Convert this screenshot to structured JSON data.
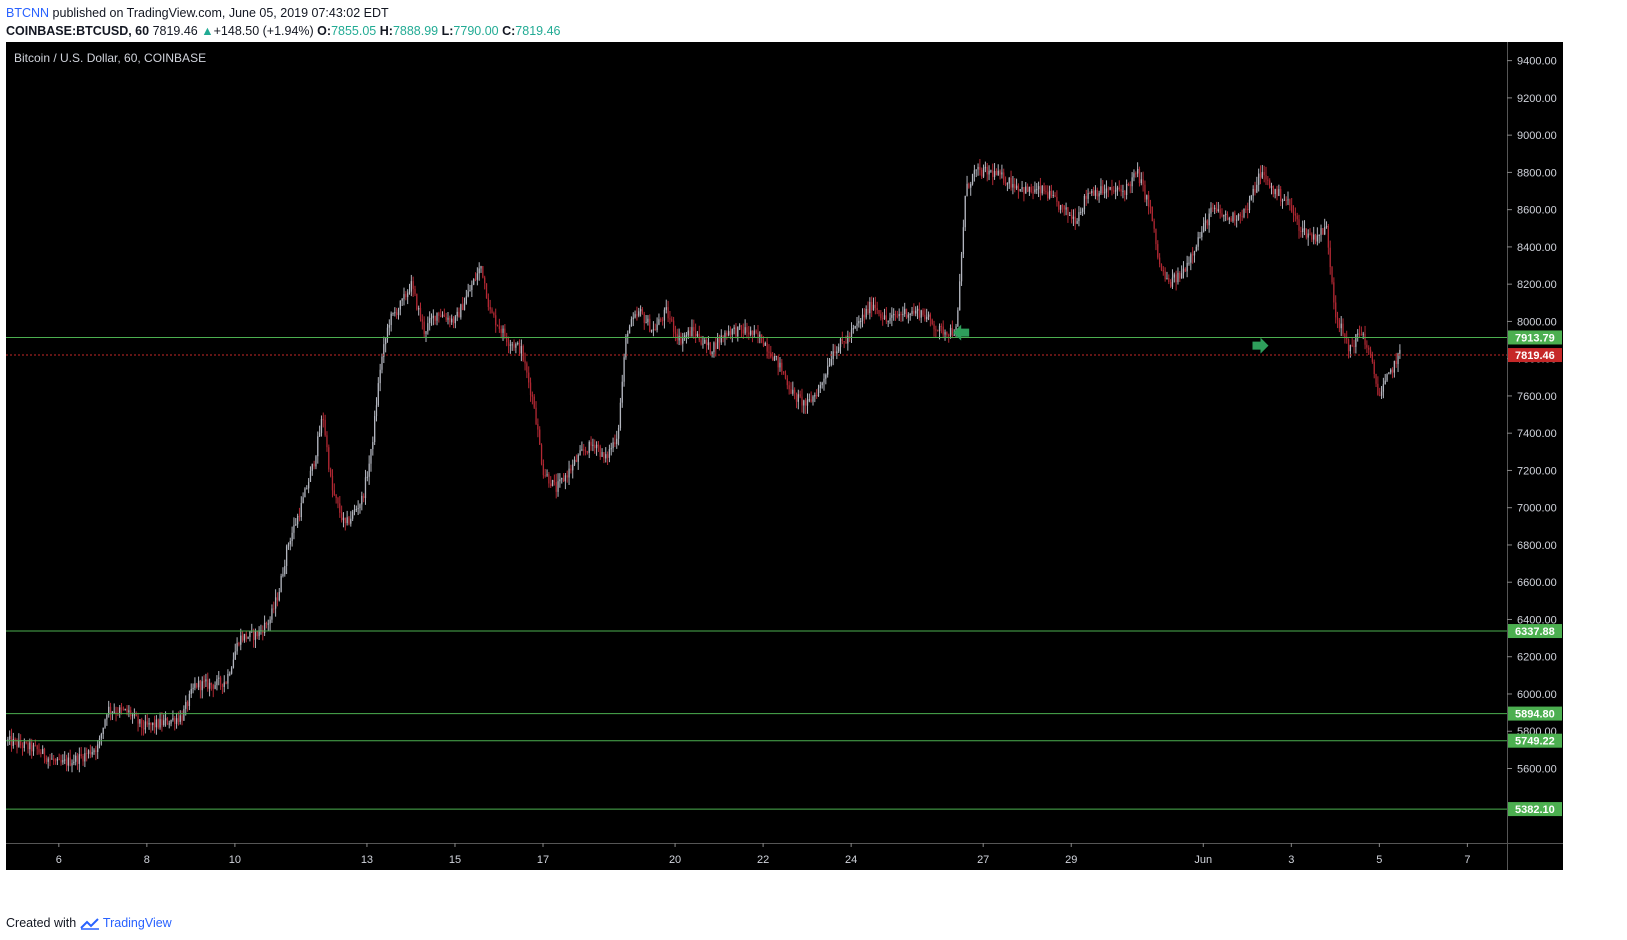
{
  "header": {
    "author": "BTCNN",
    "published_text": "published on TradingView.com, June 05, 2019 07:43:02 EDT"
  },
  "ohlc": {
    "symbol": "COINBASE:BTCUSD, 60",
    "last": "7819.46",
    "change": "+148.50 (+1.94%)",
    "o_label": "O:",
    "o_value": "7855.05",
    "h_label": "H:",
    "h_value": "7888.99",
    "l_label": "L:",
    "l_value": "7790.00",
    "c_label": "C:",
    "c_value": "7819.46"
  },
  "footer": {
    "created_with": "Created with",
    "brand": "TradingView"
  },
  "colors": {
    "background": "#000000",
    "bull_candle": "#b2b5be",
    "bear_candle": "#b22833",
    "support_line": "#4caf50",
    "last_price": "#c62828"
  },
  "chart_data": {
    "type": "candlestick",
    "title": "Bitcoin / U.S. Dollar, 60, COINBASE",
    "xlabel": "",
    "ylabel": "",
    "ylim": [
      5200,
      9500
    ],
    "grid": false,
    "y_ticks": [
      5600,
      5800,
      6000,
      6200,
      6400,
      6600,
      6800,
      7000,
      7200,
      7400,
      7600,
      7800,
      8000,
      8200,
      8400,
      8600,
      8800,
      9000,
      9200,
      9400
    ],
    "x_ticks": [
      {
        "day": 6,
        "label": "6"
      },
      {
        "day": 8,
        "label": "8"
      },
      {
        "day": 10,
        "label": "10"
      },
      {
        "day": 13,
        "label": "13"
      },
      {
        "day": 15,
        "label": "15"
      },
      {
        "day": 17,
        "label": "17"
      },
      {
        "day": 20,
        "label": "20"
      },
      {
        "day": 22,
        "label": "22"
      },
      {
        "day": 24,
        "label": "24"
      },
      {
        "day": 27,
        "label": "27"
      },
      {
        "day": 29,
        "label": "29"
      },
      {
        "day": 32,
        "label": "Jun"
      },
      {
        "day": 34,
        "label": "3"
      },
      {
        "day": 36,
        "label": "5"
      },
      {
        "day": 38,
        "label": "7"
      }
    ],
    "x_range_days": [
      4.8,
      38.9
    ],
    "horizontal_lines": [
      {
        "value": 7913.79,
        "label": "7913.79",
        "style": "support"
      },
      {
        "value": 6337.88,
        "label": "6337.88",
        "style": "support"
      },
      {
        "value": 5894.8,
        "label": "5894.80",
        "style": "support"
      },
      {
        "value": 5749.22,
        "label": "5749.22",
        "style": "support"
      },
      {
        "value": 5382.1,
        "label": "5382.10",
        "style": "support"
      },
      {
        "value": 7819.46,
        "label": "7819.46",
        "style": "last_price"
      }
    ],
    "markers": [
      {
        "day": 26.5,
        "value": 7940,
        "direction": "left"
      },
      {
        "day": 33.3,
        "value": 7870,
        "direction": "right"
      }
    ],
    "path_points": [
      [
        4.8,
        5750
      ],
      [
        5.5,
        5700
      ],
      [
        6.0,
        5620
      ],
      [
        6.5,
        5660
      ],
      [
        6.9,
        5720
      ],
      [
        7.1,
        5920
      ],
      [
        7.6,
        5900
      ],
      [
        7.9,
        5820
      ],
      [
        8.3,
        5840
      ],
      [
        8.8,
        5880
      ],
      [
        9.1,
        6050
      ],
      [
        9.5,
        6050
      ],
      [
        9.8,
        6070
      ],
      [
        10.1,
        6300
      ],
      [
        10.5,
        6320
      ],
      [
        10.8,
        6400
      ],
      [
        11.0,
        6550
      ],
      [
        11.2,
        6800
      ],
      [
        11.5,
        7000
      ],
      [
        11.8,
        7250
      ],
      [
        12.0,
        7500
      ],
      [
        12.2,
        7100
      ],
      [
        12.5,
        6900
      ],
      [
        12.9,
        7050
      ],
      [
        13.1,
        7300
      ],
      [
        13.3,
        7750
      ],
      [
        13.5,
        8000
      ],
      [
        13.8,
        8100
      ],
      [
        14.0,
        8200
      ],
      [
        14.3,
        7950
      ],
      [
        14.6,
        8050
      ],
      [
        15.0,
        8000
      ],
      [
        15.3,
        8150
      ],
      [
        15.6,
        8300
      ],
      [
        15.8,
        8050
      ],
      [
        16.2,
        7900
      ],
      [
        16.5,
        7850
      ],
      [
        16.8,
        7550
      ],
      [
        17.0,
        7200
      ],
      [
        17.3,
        7100
      ],
      [
        17.6,
        7200
      ],
      [
        17.9,
        7300
      ],
      [
        18.2,
        7350
      ],
      [
        18.4,
        7250
      ],
      [
        18.7,
        7400
      ],
      [
        18.9,
        7950
      ],
      [
        19.2,
        8050
      ],
      [
        19.5,
        7950
      ],
      [
        19.8,
        8050
      ],
      [
        20.1,
        7900
      ],
      [
        20.4,
        7950
      ],
      [
        20.8,
        7850
      ],
      [
        21.2,
        7950
      ],
      [
        21.6,
        7950
      ],
      [
        22.0,
        7900
      ],
      [
        22.4,
        7750
      ],
      [
        22.7,
        7600
      ],
      [
        23.0,
        7550
      ],
      [
        23.3,
        7650
      ],
      [
        23.6,
        7850
      ],
      [
        23.9,
        7900
      ],
      [
        24.2,
        8000
      ],
      [
        24.5,
        8100
      ],
      [
        24.8,
        8000
      ],
      [
        25.2,
        8050
      ],
      [
        25.6,
        8050
      ],
      [
        26.0,
        7950
      ],
      [
        26.4,
        7950
      ],
      [
        26.6,
        8700
      ],
      [
        26.8,
        8800
      ],
      [
        27.2,
        8800
      ],
      [
        27.6,
        8750
      ],
      [
        28.0,
        8700
      ],
      [
        28.4,
        8700
      ],
      [
        28.8,
        8600
      ],
      [
        29.1,
        8550
      ],
      [
        29.4,
        8700
      ],
      [
        29.8,
        8700
      ],
      [
        30.2,
        8700
      ],
      [
        30.5,
        8800
      ],
      [
        30.8,
        8600
      ],
      [
        31.0,
        8300
      ],
      [
        31.2,
        8200
      ],
      [
        31.5,
        8250
      ],
      [
        31.8,
        8400
      ],
      [
        32.2,
        8600
      ],
      [
        32.6,
        8550
      ],
      [
        33.0,
        8600
      ],
      [
        33.3,
        8800
      ],
      [
        33.6,
        8700
      ],
      [
        33.9,
        8650
      ],
      [
        34.2,
        8500
      ],
      [
        34.5,
        8450
      ],
      [
        34.8,
        8500
      ],
      [
        35.0,
        8050
      ],
      [
        35.3,
        7850
      ],
      [
        35.6,
        7950
      ],
      [
        35.8,
        7800
      ],
      [
        36.0,
        7600
      ],
      [
        36.2,
        7700
      ],
      [
        36.4,
        7800
      ],
      [
        36.5,
        7830
      ]
    ]
  }
}
